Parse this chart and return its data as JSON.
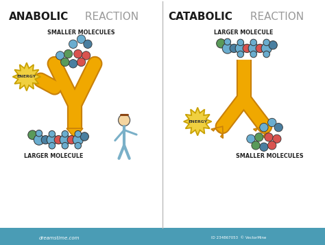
{
  "bg_color": "#ffffff",
  "footer_color": "#4a9cb5",
  "title_anabolic": "ANABOLIC",
  "title_reaction_left": " REACTION",
  "title_catabolic": "CATABOLIC",
  "title_reaction_right": " REACTION",
  "label_smaller_molecules_left": "SMALLER MOLECULES",
  "label_larger_molecule_left": "LARGER MOLECULE",
  "label_larger_molecule_right": "LARGER MOLECULE",
  "label_smaller_molecules_right": "SMALLER MOLECULES",
  "label_energy": "ENERGY",
  "arrow_color": "#f0a800",
  "arrow_edge_color": "#c8800a",
  "energy_fill": "#f0d040",
  "energy_edge": "#c8a000",
  "molecule_colors": {
    "blue": "#6aadcf",
    "blue_dark": "#4a7fa0",
    "red": "#d9534f",
    "green": "#5a9a5a"
  },
  "footer_dreamsttime": "dreamstime.com",
  "footer_watermark": "ID 234867053  © VectorMine"
}
